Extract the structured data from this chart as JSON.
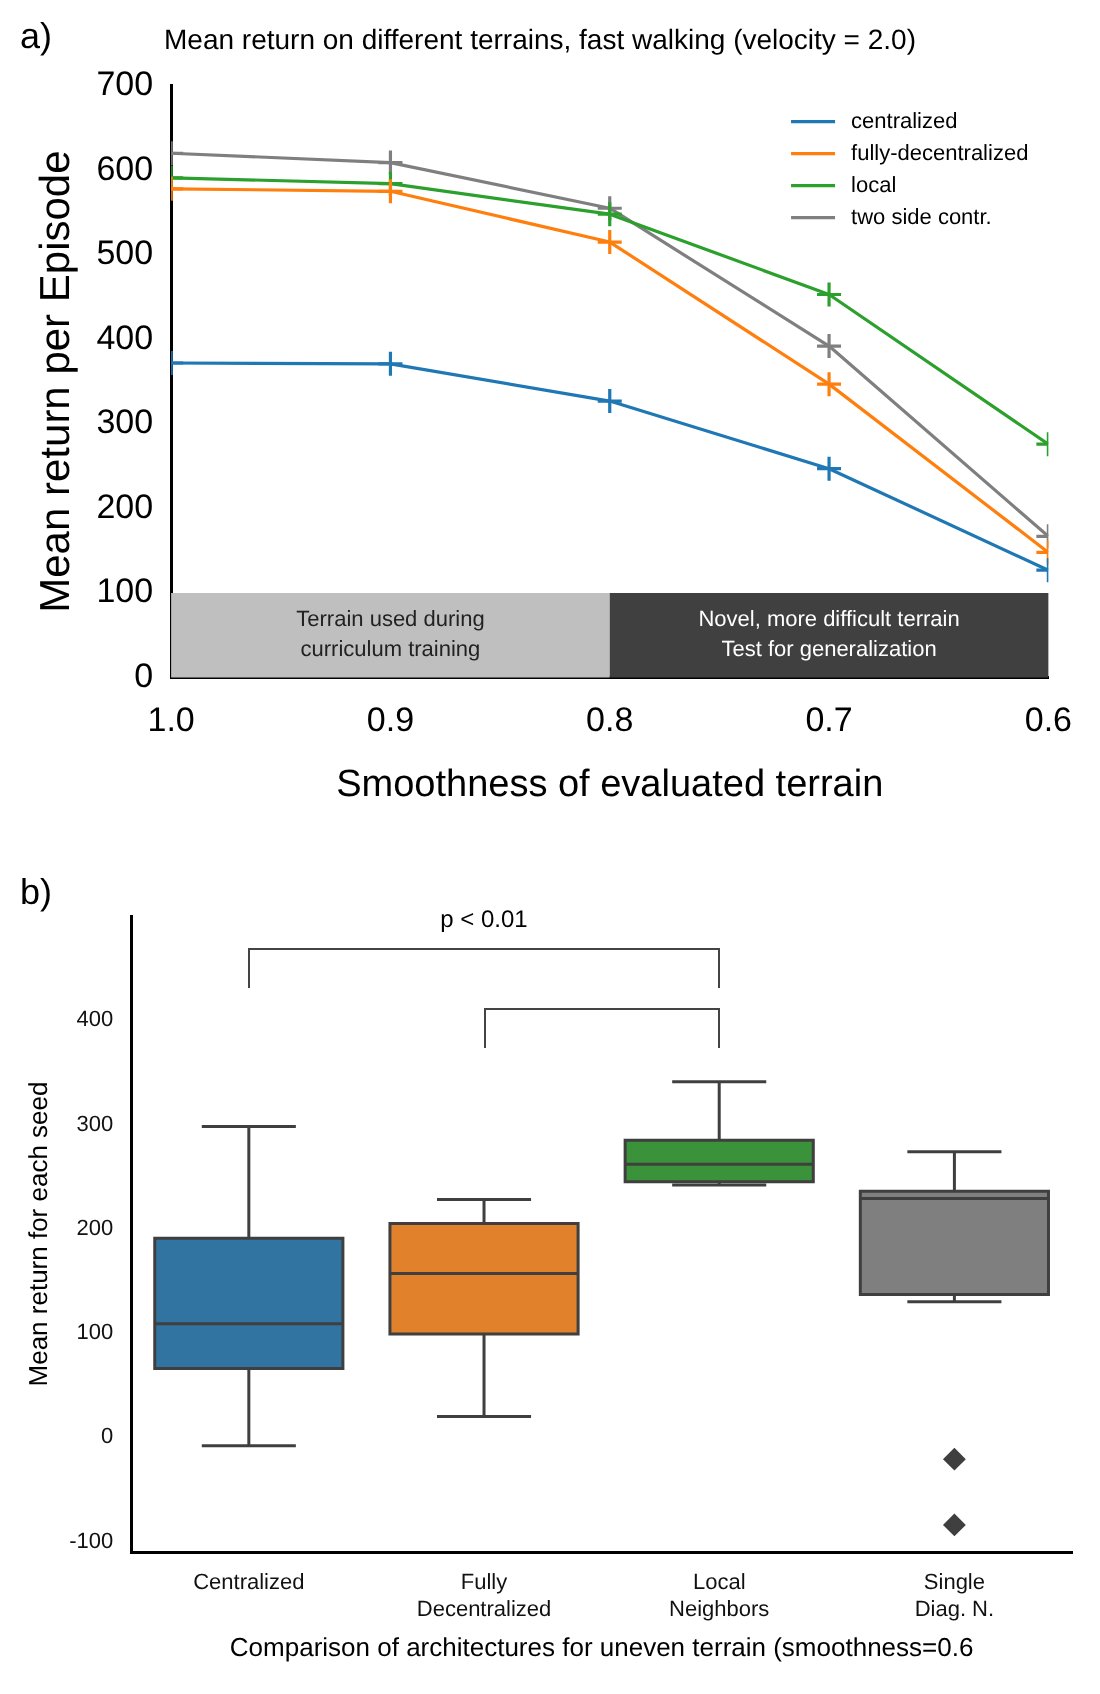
{
  "chart_data": [
    {
      "type": "line",
      "title": "Mean return on different terrains, fast walking (velocity = 2.0)",
      "xlabel": "Smoothness of evaluated terrain",
      "ylabel": "Mean return per Episode",
      "x": [
        1.0,
        0.9,
        0.8,
        0.7,
        0.6
      ],
      "series": [
        {
          "name": "centralized",
          "color": "#1f77b4",
          "values": [
            372,
            371,
            327,
            247,
            127
          ]
        },
        {
          "name": "fully-decentralized",
          "color": "#ff7f0e",
          "values": [
            578,
            575,
            515,
            347,
            148
          ]
        },
        {
          "name": "local",
          "color": "#2ca02c",
          "values": [
            591,
            584,
            548,
            453,
            276
          ]
        },
        {
          "name": "two side contr.",
          "color": "#7f7f7f",
          "values": [
            620,
            609,
            555,
            392,
            167
          ]
        }
      ],
      "xlim": [
        1.0,
        0.6
      ],
      "xticks": [
        {
          "value": 1.0,
          "label": "1.0"
        },
        0.9,
        0.8,
        0.7,
        0.6
      ],
      "ylim": [
        0,
        700
      ],
      "yticks": [
        0,
        100,
        200,
        300,
        400,
        500,
        600,
        700
      ],
      "bands": [
        {
          "axis": "x",
          "from": 1.0,
          "to": 0.8,
          "label": "Terrain used during\ncurriculum training",
          "color": "#bfbfbf"
        },
        {
          "axis": "x",
          "from": 0.8,
          "to": 0.6,
          "label": "Novel, more difficult terrain\nTest for generalization",
          "color": "#404040"
        }
      ],
      "annotations": [
        "a)"
      ],
      "marker": "cross",
      "legend": "top right",
      "grid": false
    },
    {
      "type": "box",
      "xlabel": "Comparison of architectures for uneven terrain (smoothness=0.6",
      "ylabel": "Mean return for each seed",
      "categories": [
        "Centralized",
        "Fully\nDecentralized",
        "Local\nNeighbors",
        "Single\nDiag. N."
      ],
      "colors": [
        "#3274a1",
        "#e1812c",
        "#3a923a",
        "#7f7f7f"
      ],
      "boxes": [
        {
          "low": -8,
          "q1": 66,
          "median": 109,
          "q3": 191,
          "high": 298
        },
        {
          "low": 20,
          "q1": 99,
          "median": 157,
          "q3": 205,
          "high": 228
        },
        {
          "low": 242,
          "q1": 245,
          "median": 262,
          "q3": 285,
          "high": 341
        },
        {
          "low": 130,
          "q1": 137,
          "median": 229,
          "q3": 236,
          "high": 274,
          "outliers": [
            -21,
            -84
          ]
        }
      ],
      "ylim": [
        -110,
        500
      ],
      "yticks": [
        -100,
        0,
        100,
        200,
        300,
        400
      ],
      "annotations": [
        "b)",
        "p < 0.01"
      ],
      "grid": false
    }
  ]
}
